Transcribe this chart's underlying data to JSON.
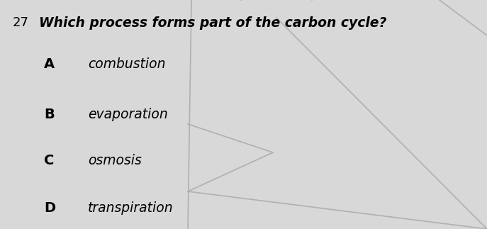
{
  "question_number": "27",
  "question_text": "Which process forms part of the carbon cycle?",
  "options": [
    {
      "label": "A",
      "text": "combustion"
    },
    {
      "label": "B",
      "text": "evaporation"
    },
    {
      "label": "C",
      "text": "osmosis"
    },
    {
      "label": "D",
      "text": "transpiration"
    }
  ],
  "background_color": "#d8d8d8",
  "panel_color": "#e8e8e8",
  "text_color": "#000000",
  "line_color": "#b0b0b0",
  "question_fontsize": 13.5,
  "option_label_fontsize": 14,
  "option_text_fontsize": 13.5,
  "question_number_fontsize": 13,
  "lines": [
    {
      "x": [
        0.555,
        0.555
      ],
      "y": [
        1.0,
        0.0
      ]
    },
    {
      "x": [
        0.555,
        1.0
      ],
      "y": [
        0.62,
        0.47
      ]
    },
    {
      "x": [
        0.555,
        1.0
      ],
      "y": [
        0.17,
        0.47
      ]
    },
    {
      "x": [
        0.555,
        1.0
      ],
      "y": [
        1.0,
        0.56
      ]
    },
    {
      "x": [
        0.62,
        1.0
      ],
      "y": [
        1.0,
        0.93
      ]
    },
    {
      "x": [
        0.38,
        0.555
      ],
      "y": [
        0.0,
        0.17
      ]
    }
  ]
}
